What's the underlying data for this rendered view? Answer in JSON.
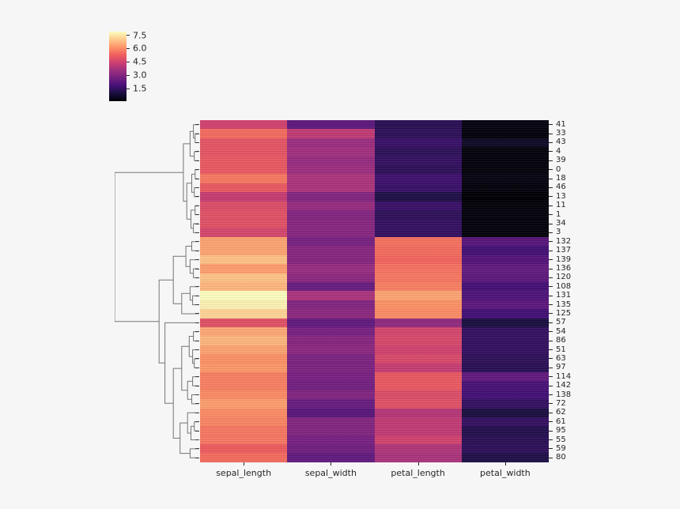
{
  "figure": {
    "background": "#f6f6f6",
    "text_color": "#262626",
    "dendrogram_color": "#757575"
  },
  "chart_data": {
    "type": "heatmap",
    "variant": "clustermap",
    "title": "",
    "legend_position": "top-left",
    "grid": false,
    "columns": [
      "sepal_length",
      "sepal_width",
      "petal_length",
      "petal_width"
    ],
    "colormap": {
      "name": "magma",
      "stops": [
        "#000004",
        "#180f3e",
        "#451077",
        "#721f81",
        "#9f2f7f",
        "#cd4071",
        "#f1605d",
        "#fd9567",
        "#feca8d",
        "#fcfdbf"
      ]
    },
    "vmin": 0.1,
    "vmax": 7.9,
    "colorbar_ticks": [
      {
        "label": "7.5",
        "value": 7.5
      },
      {
        "label": "6.0",
        "value": 6.0
      },
      {
        "label": "4.5",
        "value": 4.5
      },
      {
        "label": "3.0",
        "value": 3.0
      },
      {
        "label": "1.5",
        "value": 1.5
      }
    ],
    "rows": [
      {
        "label": "41",
        "values": [
          4.5,
          2.3,
          1.3,
          0.3
        ]
      },
      {
        "label": "33",
        "values": [
          5.5,
          4.2,
          1.4,
          0.2
        ]
      },
      {
        "label": "43",
        "values": [
          5.0,
          3.5,
          1.6,
          0.6
        ]
      },
      {
        "label": "4",
        "values": [
          5.0,
          3.6,
          1.4,
          0.2
        ]
      },
      {
        "label": "39",
        "values": [
          5.1,
          3.4,
          1.5,
          0.2
        ]
      },
      {
        "label": "0",
        "values": [
          5.1,
          3.5,
          1.4,
          0.2
        ]
      },
      {
        "label": "18",
        "values": [
          5.7,
          3.8,
          1.7,
          0.3
        ]
      },
      {
        "label": "46",
        "values": [
          5.1,
          3.8,
          1.6,
          0.2
        ]
      },
      {
        "label": "13",
        "values": [
          4.3,
          3.0,
          1.1,
          0.1
        ]
      },
      {
        "label": "11",
        "values": [
          4.8,
          3.4,
          1.6,
          0.2
        ]
      },
      {
        "label": "1",
        "values": [
          4.9,
          3.0,
          1.4,
          0.2
        ]
      },
      {
        "label": "34",
        "values": [
          4.9,
          3.1,
          1.5,
          0.2
        ]
      },
      {
        "label": "3",
        "values": [
          4.6,
          3.1,
          1.5,
          0.2
        ]
      },
      {
        "label": "132",
        "values": [
          6.4,
          2.8,
          5.6,
          2.2
        ]
      },
      {
        "label": "137",
        "values": [
          6.4,
          3.1,
          5.5,
          1.8
        ]
      },
      {
        "label": "139",
        "values": [
          6.9,
          3.1,
          5.4,
          2.1
        ]
      },
      {
        "label": "136",
        "values": [
          6.3,
          3.4,
          5.6,
          2.4
        ]
      },
      {
        "label": "120",
        "values": [
          6.9,
          3.2,
          5.7,
          2.3
        ]
      },
      {
        "label": "108",
        "values": [
          6.7,
          2.5,
          5.8,
          1.8
        ]
      },
      {
        "label": "131",
        "values": [
          7.9,
          3.8,
          6.4,
          2.0
        ]
      },
      {
        "label": "135",
        "values": [
          7.7,
          3.0,
          6.1,
          2.3
        ]
      },
      {
        "label": "125",
        "values": [
          7.2,
          3.2,
          6.0,
          1.8
        ]
      },
      {
        "label": "57",
        "values": [
          4.9,
          2.4,
          3.3,
          1.0
        ]
      },
      {
        "label": "54",
        "values": [
          6.5,
          2.8,
          4.6,
          1.5
        ]
      },
      {
        "label": "86",
        "values": [
          6.7,
          3.1,
          4.7,
          1.5
        ]
      },
      {
        "label": "51",
        "values": [
          6.4,
          3.2,
          4.5,
          1.5
        ]
      },
      {
        "label": "63",
        "values": [
          6.1,
          2.9,
          4.7,
          1.4
        ]
      },
      {
        "label": "97",
        "values": [
          6.2,
          2.9,
          4.3,
          1.3
        ]
      },
      {
        "label": "114",
        "values": [
          5.8,
          2.8,
          5.1,
          2.4
        ]
      },
      {
        "label": "142",
        "values": [
          5.8,
          2.7,
          5.1,
          1.9
        ]
      },
      {
        "label": "138",
        "values": [
          6.0,
          3.0,
          4.8,
          1.8
        ]
      },
      {
        "label": "72",
        "values": [
          6.3,
          2.5,
          4.9,
          1.5
        ]
      },
      {
        "label": "62",
        "values": [
          6.0,
          2.2,
          4.0,
          1.0
        ]
      },
      {
        "label": "61",
        "values": [
          5.9,
          3.0,
          4.2,
          1.5
        ]
      },
      {
        "label": "95",
        "values": [
          5.7,
          3.0,
          4.2,
          1.2
        ]
      },
      {
        "label": "55",
        "values": [
          5.7,
          2.8,
          4.5,
          1.3
        ]
      },
      {
        "label": "59",
        "values": [
          5.2,
          2.7,
          3.9,
          1.4
        ]
      },
      {
        "label": "80",
        "values": [
          5.5,
          2.4,
          3.8,
          1.1
        ]
      }
    ],
    "dendrogram": {
      "d": 1.0,
      "c": [
        {
          "d": 0.18,
          "c": [
            {
              "d": 0.1,
              "c": [
                {
                  "d": 0.06,
                  "c": [
                    {
                      "leaf": 0
                    },
                    {
                      "d": 0.04,
                      "c": [
                        {
                          "leaf": 1
                        },
                        {
                          "leaf": 2
                        }
                      ]
                    }
                  ]
                },
                {
                  "d": 0.05,
                  "c": [
                    {
                      "leaf": 3
                    },
                    {
                      "leaf": 4
                    }
                  ]
                }
              ]
            },
            {
              "d": 0.14,
              "c": [
                {
                  "d": 0.08,
                  "c": [
                    {
                      "d": 0.04,
                      "c": [
                        {
                          "leaf": 5
                        },
                        {
                          "leaf": 6
                        }
                      ]
                    },
                    {
                      "d": 0.05,
                      "c": [
                        {
                          "leaf": 7
                        },
                        {
                          "leaf": 8
                        }
                      ]
                    }
                  ]
                },
                {
                  "d": 0.09,
                  "c": [
                    {
                      "d": 0.04,
                      "c": [
                        {
                          "leaf": 9
                        },
                        {
                          "leaf": 10
                        }
                      ]
                    },
                    {
                      "d": 0.06,
                      "c": [
                        {
                          "leaf": 11
                        },
                        {
                          "leaf": 12
                        }
                      ]
                    }
                  ]
                }
              ]
            }
          ]
        },
        {
          "d": 0.47,
          "c": [
            {
              "d": 0.3,
              "c": [
                {
                  "d": 0.15,
                  "c": [
                    {
                      "d": 0.08,
                      "c": [
                        {
                          "leaf": 13
                        },
                        {
                          "leaf": 14
                        }
                      ]
                    },
                    {
                      "d": 0.1,
                      "c": [
                        {
                          "leaf": 15
                        },
                        {
                          "d": 0.06,
                          "c": [
                            {
                              "leaf": 16
                            },
                            {
                              "leaf": 17
                            }
                          ]
                        }
                      ]
                    }
                  ]
                },
                {
                  "d": 0.2,
                  "c": [
                    {
                      "d": 0.1,
                      "c": [
                        {
                          "leaf": 18
                        },
                        {
                          "d": 0.07,
                          "c": [
                            {
                              "leaf": 19
                            },
                            {
                              "leaf": 20
                            }
                          ]
                        }
                      ]
                    },
                    {
                      "leaf": 21
                    }
                  ]
                }
              ]
            },
            {
              "d": 0.4,
              "c": [
                {
                  "leaf": 22
                },
                {
                  "d": 0.3,
                  "c": [
                    {
                      "d": 0.2,
                      "c": [
                        {
                          "d": 0.11,
                          "c": [
                            {
                              "d": 0.06,
                              "c": [
                                {
                                  "leaf": 23
                                },
                                {
                                  "leaf": 24
                                }
                              ]
                            },
                            {
                              "d": 0.07,
                              "c": [
                                {
                                  "leaf": 25
                                },
                                {
                                  "d": 0.05,
                                  "c": [
                                    {
                                      "leaf": 26
                                    },
                                    {
                                      "leaf": 27
                                    }
                                  ]
                                }
                              ]
                            }
                          ]
                        },
                        {
                          "d": 0.13,
                          "c": [
                            {
                              "d": 0.07,
                              "c": [
                                {
                                  "leaf": 28
                                },
                                {
                                  "leaf": 29
                                }
                              ]
                            },
                            {
                              "d": 0.08,
                              "c": [
                                {
                                  "leaf": 30
                                },
                                {
                                  "leaf": 31
                                }
                              ]
                            }
                          ]
                        }
                      ]
                    },
                    {
                      "d": 0.22,
                      "c": [
                        {
                          "d": 0.13,
                          "c": [
                            {
                              "leaf": 32
                            },
                            {
                              "d": 0.09,
                              "c": [
                                {
                                  "d": 0.05,
                                  "c": [
                                    {
                                      "leaf": 33
                                    },
                                    {
                                      "leaf": 34
                                    }
                                  ]
                                },
                                {
                                  "leaf": 35
                                }
                              ]
                            }
                          ]
                        },
                        {
                          "d": 0.1,
                          "c": [
                            {
                              "leaf": 36
                            },
                            {
                              "leaf": 37
                            }
                          ]
                        }
                      ]
                    }
                  ]
                }
              ]
            }
          ]
        }
      ]
    }
  }
}
